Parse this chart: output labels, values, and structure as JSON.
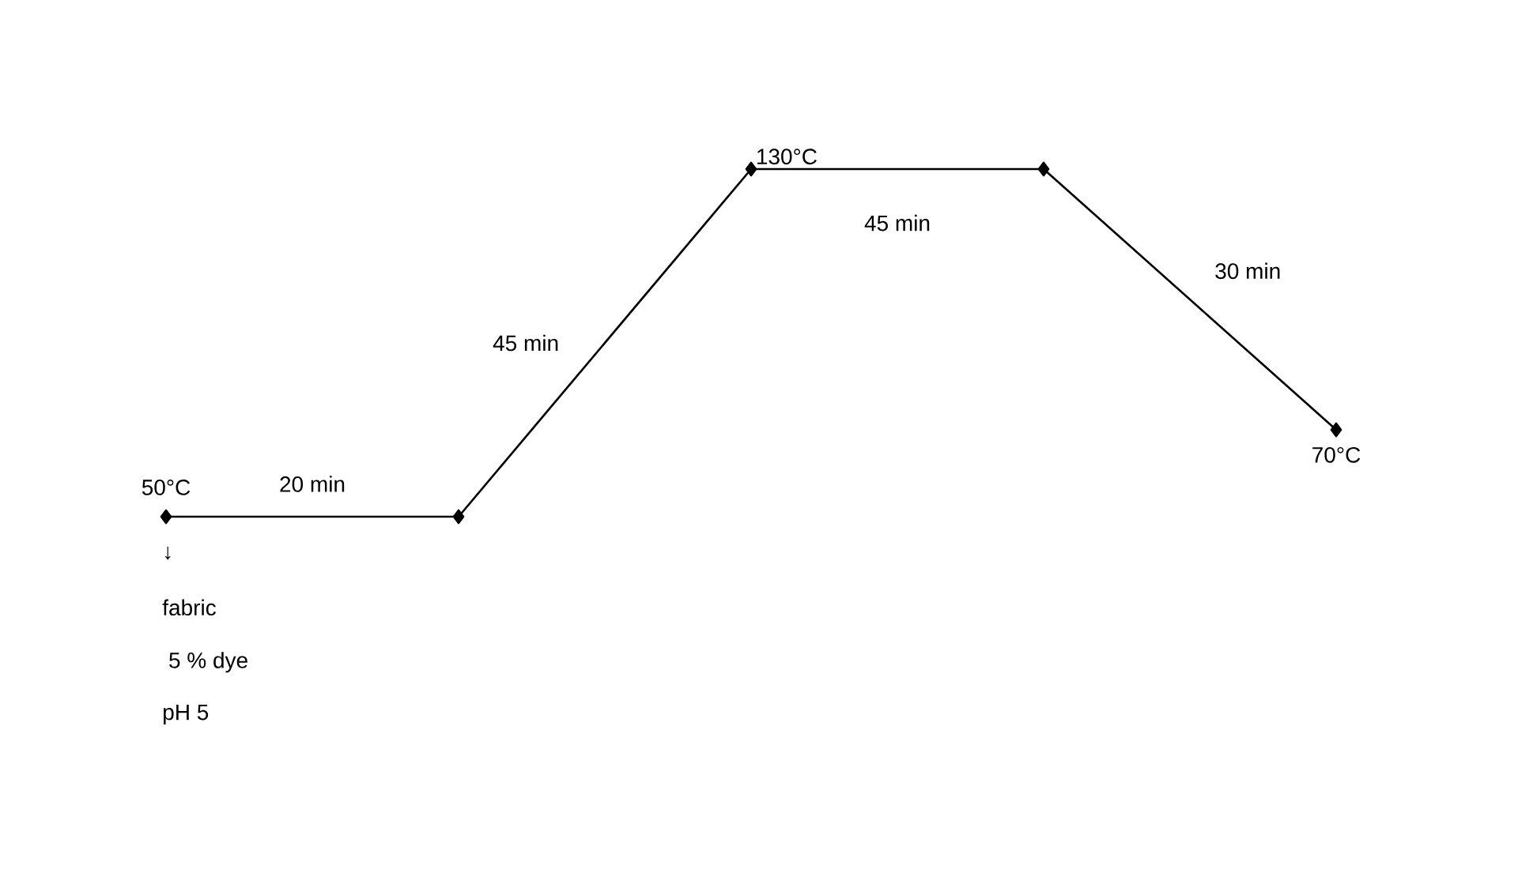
{
  "chart_data": {
    "type": "line",
    "categories": [
      null,
      null,
      null,
      null,
      null
    ],
    "values": [
      50,
      50,
      130,
      130,
      70
    ],
    "value_labels": [
      "50°C",
      null,
      "130°C",
      null,
      "70°C"
    ],
    "color": "#000000",
    "marker": "diamond",
    "line_style": "solid",
    "annotations": [
      "20 min",
      "45 min",
      "45 min",
      "30 min",
      "↓",
      "fabric",
      " 5 % dye",
      "pH 5"
    ]
  }
}
